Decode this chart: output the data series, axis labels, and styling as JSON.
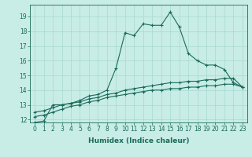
{
  "xlabel": "Humidex (Indice chaleur)",
  "ylabel": "",
  "background_color": "#c8ece6",
  "line_color": "#1a6b5a",
  "grid_color": "#a8d8d0",
  "xlim": [
    -0.5,
    23.5
  ],
  "ylim": [
    11.8,
    19.8
  ],
  "yticks": [
    12,
    13,
    14,
    15,
    16,
    17,
    18,
    19
  ],
  "xticks": [
    0,
    1,
    2,
    3,
    4,
    5,
    6,
    7,
    8,
    9,
    10,
    11,
    12,
    13,
    14,
    15,
    16,
    17,
    18,
    19,
    20,
    21,
    22,
    23
  ],
  "series1_x": [
    0,
    1,
    2,
    3,
    4,
    5,
    6,
    7,
    8,
    9,
    10,
    11,
    12,
    13,
    14,
    15,
    16,
    17,
    18,
    19,
    20,
    21,
    22,
    23
  ],
  "series1_y": [
    11.8,
    11.9,
    13.0,
    13.0,
    13.1,
    13.3,
    13.6,
    13.7,
    14.0,
    15.5,
    17.9,
    17.7,
    18.5,
    18.4,
    18.4,
    19.3,
    18.3,
    16.5,
    16.0,
    15.7,
    15.7,
    15.4,
    14.5,
    14.2
  ],
  "series2_x": [
    0,
    1,
    2,
    3,
    4,
    5,
    6,
    7,
    8,
    9,
    10,
    11,
    12,
    13,
    14,
    15,
    16,
    17,
    18,
    19,
    20,
    21,
    22,
    23
  ],
  "series2_y": [
    12.5,
    12.6,
    12.8,
    13.0,
    13.1,
    13.2,
    13.4,
    13.5,
    13.7,
    13.8,
    14.0,
    14.1,
    14.2,
    14.3,
    14.4,
    14.5,
    14.5,
    14.6,
    14.6,
    14.7,
    14.7,
    14.8,
    14.8,
    14.2
  ],
  "series3_x": [
    0,
    1,
    2,
    3,
    4,
    5,
    6,
    7,
    8,
    9,
    10,
    11,
    12,
    13,
    14,
    15,
    16,
    17,
    18,
    19,
    20,
    21,
    22,
    23
  ],
  "series3_y": [
    12.2,
    12.3,
    12.5,
    12.7,
    12.9,
    13.0,
    13.2,
    13.3,
    13.5,
    13.6,
    13.7,
    13.8,
    13.9,
    14.0,
    14.0,
    14.1,
    14.1,
    14.2,
    14.2,
    14.3,
    14.3,
    14.4,
    14.4,
    14.2
  ],
  "marker": "+",
  "tick_fontsize": 5.5,
  "xlabel_fontsize": 6.5
}
